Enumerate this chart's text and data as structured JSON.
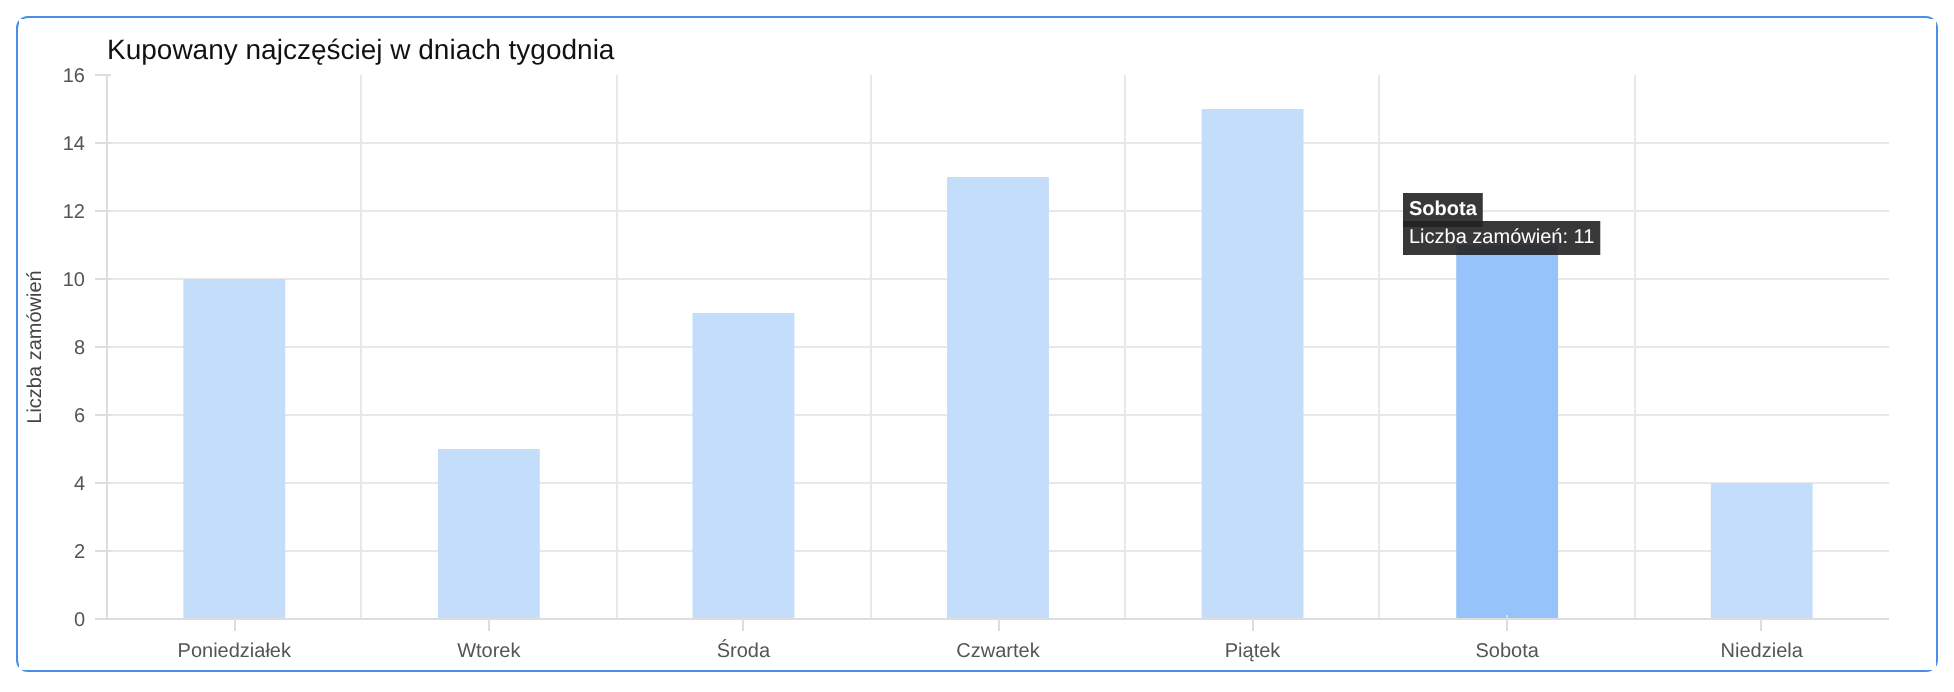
{
  "chart_data": {
    "type": "bar",
    "title": "Kupowany najczęściej w dniach tygodnia",
    "ylabel": "Liczba zamówień",
    "categories": [
      "Poniedziałek",
      "Wtorek",
      "Środa",
      "Czwartek",
      "Piątek",
      "Sobota",
      "Niedziela"
    ],
    "values": [
      10,
      5,
      9,
      13,
      15,
      11,
      4
    ],
    "colors": [
      "#c3ddfb",
      "#c3ddfb",
      "#c3ddfb",
      "#c3ddfb",
      "#c3ddfb",
      "#95c3fa",
      "#c3ddfb"
    ],
    "ylim": [
      0,
      16
    ],
    "yticks": [
      0,
      2,
      4,
      6,
      8,
      10,
      12,
      14,
      16
    ],
    "grid": true,
    "annotations": [
      "Sobota",
      "Liczba zamówień: 11"
    ]
  }
}
